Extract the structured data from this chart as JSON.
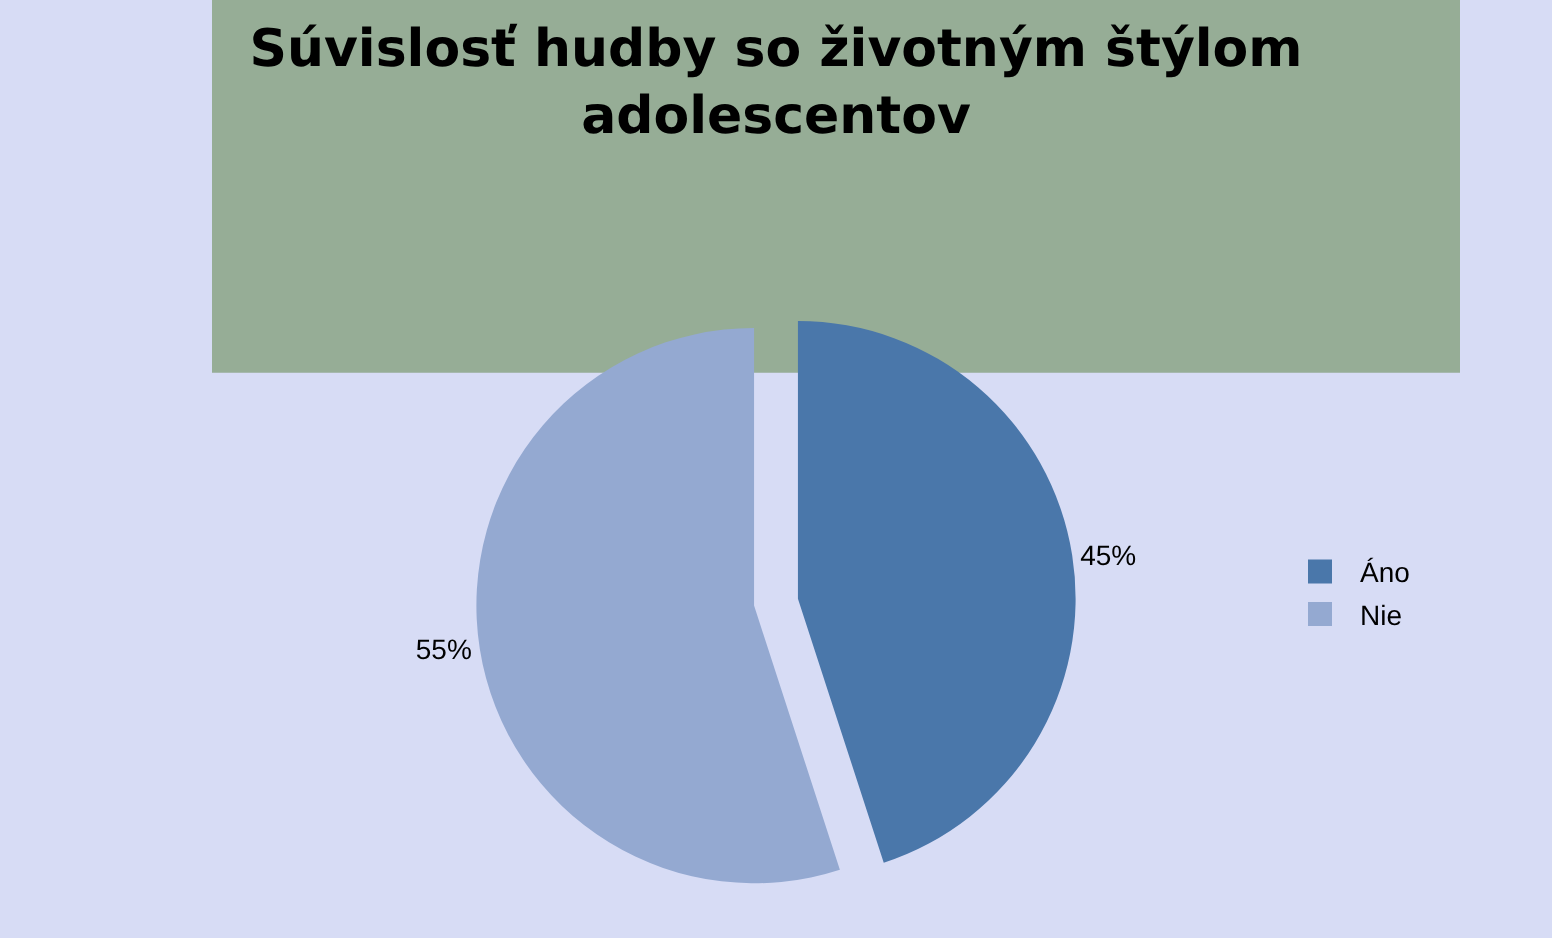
{
  "chart_data": {
    "type": "pie",
    "title": "Súvislosť hudby so životným štýlom adolescentov",
    "categories": [
      "Áno",
      "Nie"
    ],
    "values": [
      45,
      55
    ],
    "colors": [
      "#4a77aa",
      "#94a9d1"
    ],
    "value_labels": [
      "45%",
      "55%"
    ],
    "legend": "right"
  }
}
